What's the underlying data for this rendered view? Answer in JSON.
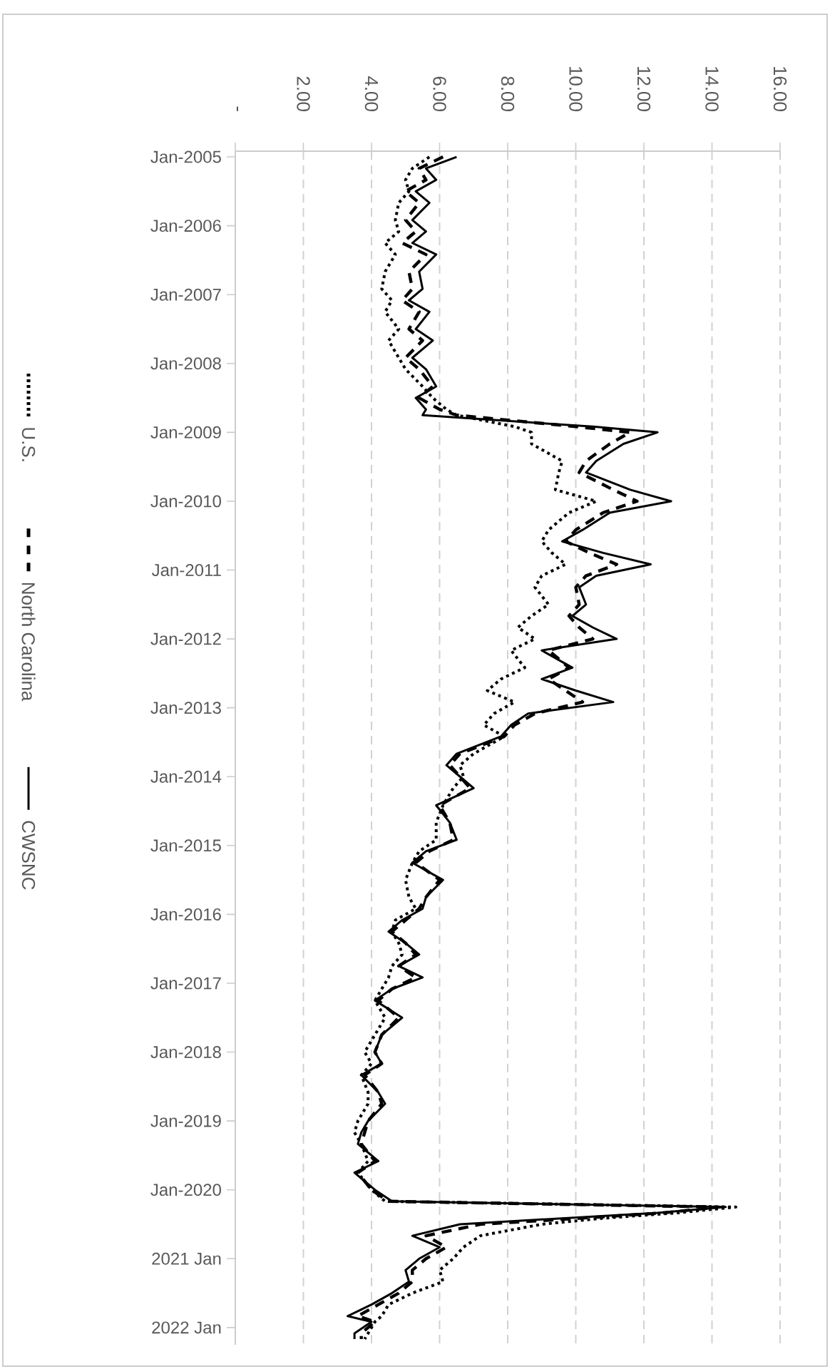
{
  "chart_data": {
    "type": "line",
    "x": [
      "2005-01",
      "2005-03",
      "2005-05",
      "2005-07",
      "2005-09",
      "2005-12",
      "2006-02",
      "2006-04",
      "2006-06",
      "2006-09",
      "2006-12",
      "2007-02",
      "2007-04",
      "2007-07",
      "2007-09",
      "2007-12",
      "2008-02",
      "2008-05",
      "2008-07",
      "2008-09",
      "2008-10",
      "2008-12",
      "2009-01",
      "2009-03",
      "2009-06",
      "2009-08",
      "2009-11",
      "2010-01",
      "2010-03",
      "2010-06",
      "2010-08",
      "2010-10",
      "2010-12",
      "2011-02",
      "2011-04",
      "2011-07",
      "2011-09",
      "2011-11",
      "2012-01",
      "2012-03",
      "2012-06",
      "2012-08",
      "2012-10",
      "2012-12",
      "2013-02",
      "2013-04",
      "2013-06",
      "2013-09",
      "2013-11",
      "2014-01",
      "2014-03",
      "2014-06",
      "2014-09",
      "2014-12",
      "2015-02",
      "2015-04",
      "2015-07",
      "2015-10",
      "2015-12",
      "2016-02",
      "2016-04",
      "2016-06",
      "2016-08",
      "2016-10",
      "2016-12",
      "2017-02",
      "2017-04",
      "2017-07",
      "2017-10",
      "2018-01",
      "2018-03",
      "2018-05",
      "2018-08",
      "2018-10",
      "2019-01",
      "2019-03",
      "2019-05",
      "2019-08",
      "2019-10",
      "2020-01",
      "2020-03",
      "2020-04",
      "2020-05",
      "2020-06",
      "2020-07",
      "2020-09",
      "2020-11",
      "2021-01",
      "2021-03",
      "2021-05",
      "2021-07",
      "2021-09",
      "2021-11",
      "2021-12",
      "2022-02",
      "2022-03"
    ],
    "series": [
      {
        "name": "U.S.",
        "color": "#000000",
        "line_style": "dotted",
        "values": [
          5.7,
          5.2,
          5.0,
          5.1,
          4.8,
          4.7,
          4.8,
          4.4,
          4.7,
          4.4,
          4.3,
          4.6,
          4.4,
          4.8,
          4.5,
          4.8,
          5.0,
          5.5,
          5.8,
          6.2,
          6.5,
          8.2,
          8.7,
          8.7,
          9.6,
          9.5,
          9.4,
          10.6,
          9.8,
          9.2,
          9.0,
          9.3,
          9.7,
          9.0,
          8.8,
          9.2,
          8.7,
          8.3,
          8.8,
          8.1,
          8.5,
          7.8,
          7.4,
          8.2,
          7.6,
          7.3,
          7.9,
          7.0,
          6.6,
          6.7,
          6.4,
          6.1,
          5.9,
          5.9,
          5.4,
          5.2,
          5.0,
          5.1,
          5.3,
          4.7,
          4.6,
          4.8,
          4.9,
          4.6,
          4.5,
          4.3,
          4.1,
          4.4,
          4.1,
          3.8,
          4.0,
          3.7,
          3.9,
          3.9,
          3.6,
          3.5,
          3.7,
          3.9,
          3.6,
          4.0,
          4.4,
          14.7,
          13.0,
          10.7,
          9.0,
          7.2,
          6.7,
          6.4,
          6.0,
          6.1,
          5.2,
          4.5,
          4.3,
          4.1,
          3.9,
          3.8
        ]
      },
      {
        "name": "North Carolina",
        "color": "#000000",
        "line_style": "dashed",
        "values": [
          6.1,
          5.4,
          5.6,
          5.0,
          5.4,
          5.0,
          5.3,
          4.9,
          5.6,
          5.1,
          5.2,
          4.9,
          5.4,
          5.1,
          5.5,
          5.0,
          5.4,
          5.8,
          5.4,
          6.0,
          6.5,
          10.0,
          11.6,
          11.0,
          10.3,
          10.1,
          11.1,
          11.8,
          10.8,
          10.0,
          9.7,
          10.4,
          11.2,
          10.3,
          10.0,
          10.1,
          9.8,
          10.1,
          10.5,
          9.2,
          9.8,
          9.2,
          9.7,
          10.2,
          8.8,
          8.2,
          7.9,
          6.6,
          6.3,
          6.6,
          6.9,
          6.0,
          6.3,
          6.4,
          5.7,
          5.3,
          6.0,
          5.6,
          5.4,
          5.0,
          4.6,
          5.0,
          5.3,
          4.8,
          5.3,
          4.6,
          4.2,
          4.8,
          4.3,
          4.1,
          4.3,
          3.8,
          4.2,
          4.3,
          3.9,
          3.8,
          3.7,
          4.1,
          3.6,
          4.0,
          4.5,
          14.2,
          12.6,
          10.0,
          7.2,
          5.6,
          6.2,
          5.6,
          5.2,
          5.2,
          4.8,
          4.2,
          3.6,
          4.1,
          3.7,
          3.7
        ]
      },
      {
        "name": "CWSNC",
        "color": "#000000",
        "line_style": "solid",
        "values": [
          6.5,
          5.6,
          5.9,
          5.3,
          5.7,
          5.2,
          5.6,
          5.2,
          5.9,
          5.4,
          5.5,
          5.1,
          5.7,
          5.3,
          5.8,
          5.2,
          5.6,
          5.9,
          5.3,
          5.6,
          5.5,
          10.5,
          12.4,
          11.4,
          10.6,
          10.3,
          11.6,
          12.8,
          11.0,
          10.2,
          9.6,
          10.8,
          12.2,
          10.6,
          10.1,
          10.3,
          9.9,
          10.5,
          11.2,
          9.0,
          9.9,
          9.0,
          10.0,
          11.1,
          8.6,
          8.1,
          7.8,
          6.5,
          6.2,
          6.6,
          7.0,
          5.9,
          6.3,
          6.5,
          5.6,
          5.2,
          6.1,
          5.6,
          5.5,
          4.9,
          4.5,
          5.0,
          5.4,
          4.8,
          5.5,
          4.6,
          4.1,
          4.9,
          4.3,
          4.1,
          4.3,
          3.7,
          4.2,
          4.4,
          3.9,
          3.7,
          3.6,
          4.2,
          3.5,
          4.1,
          4.6,
          14.4,
          12.4,
          9.5,
          6.6,
          5.2,
          6.0,
          5.4,
          5.0,
          5.1,
          4.6,
          4.0,
          3.3,
          4.0,
          3.5,
          3.5
        ]
      }
    ],
    "orientation": "horizontal",
    "ylim": [
      "2022-04",
      "2004-12"
    ],
    "yticks": [
      {
        "value": "2005-01",
        "label": "Jan-2005"
      },
      {
        "value": "2006-01",
        "label": "Jan-2006"
      },
      {
        "value": "2007-01",
        "label": "Jan-2007"
      },
      {
        "value": "2008-01",
        "label": "Jan-2008"
      },
      {
        "value": "2009-01",
        "label": "Jan-2009"
      },
      {
        "value": "2010-01",
        "label": "Jan-2010"
      },
      {
        "value": "2011-01",
        "label": "Jan-2011"
      },
      {
        "value": "2012-01",
        "label": "Jan-2012"
      },
      {
        "value": "2013-01",
        "label": "Jan-2013"
      },
      {
        "value": "2014-01",
        "label": "Jan-2014"
      },
      {
        "value": "2015-01",
        "label": "Jan-2015"
      },
      {
        "value": "2016-01",
        "label": "Jan-2016"
      },
      {
        "value": "2017-01",
        "label": "Jan-2017"
      },
      {
        "value": "2018-01",
        "label": "Jan-2018"
      },
      {
        "value": "2019-01",
        "label": "Jan-2019"
      },
      {
        "value": "2020-01",
        "label": "Jan-2020"
      },
      {
        "value": "2021-01",
        "label": "2021 Jan"
      },
      {
        "value": "2022-01",
        "label": "2022 Jan"
      }
    ],
    "xlim": [
      0,
      16
    ],
    "xticks": [
      {
        "value": 0,
        "label": "-"
      },
      {
        "value": 2,
        "label": "2.00"
      },
      {
        "value": 4,
        "label": "4.00"
      },
      {
        "value": 6,
        "label": "6.00"
      },
      {
        "value": 8,
        "label": "8.00"
      },
      {
        "value": 10,
        "label": "10.00"
      },
      {
        "value": 12,
        "label": "12.00"
      },
      {
        "value": 14,
        "label": "14.00"
      },
      {
        "value": 16,
        "label": "16.00"
      }
    ],
    "grid": "x",
    "legend": "left"
  }
}
